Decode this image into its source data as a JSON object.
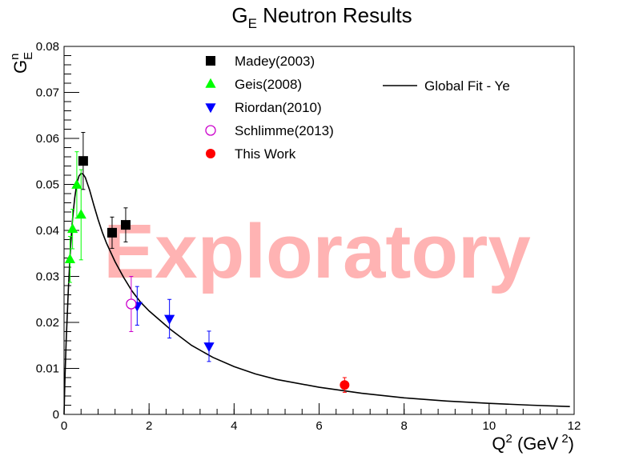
{
  "chart_data": {
    "type": "scatter",
    "title": "G",
    "title_sub": "E",
    "title_rest": " Neutron Results",
    "xlabel": "Q",
    "xlabel_sup": "2",
    "xlabel_rest": " (GeV",
    "xlabel_sup2": "2",
    "xlabel_close": ")",
    "ylabel": "G",
    "ylabel_sup": "n",
    "ylabel_sub": "E",
    "xlim": [
      0,
      12
    ],
    "ylim": [
      0,
      0.08
    ],
    "xticks": [
      0,
      2,
      4,
      6,
      8,
      10,
      12
    ],
    "xtick_labels": [
      "0",
      "2",
      "4",
      "6",
      "8",
      "10",
      "12"
    ],
    "yticks": [
      0,
      0.01,
      0.02,
      0.03,
      0.04,
      0.05,
      0.06,
      0.07,
      0.08
    ],
    "ytick_labels": [
      "0",
      "0.01",
      "0.02",
      "0.03",
      "0.04",
      "0.05",
      "0.06",
      "0.07",
      "0.08"
    ],
    "grid": false,
    "legend_placement": "top-center",
    "watermark": "Exploratory",
    "series": [
      {
        "name": "Madey(2003)",
        "marker": "square",
        "color": "#000000",
        "points": [
          {
            "x": 0.45,
            "y": 0.0551,
            "err": 0.0062
          },
          {
            "x": 1.13,
            "y": 0.0395,
            "err": 0.0034
          },
          {
            "x": 1.45,
            "y": 0.0412,
            "err": 0.0037
          }
        ]
      },
      {
        "name": "Geis(2008)",
        "marker": "triangle-up",
        "color": "#00ff00",
        "points": [
          {
            "x": 0.14,
            "y": 0.0337,
            "err": 0.005
          },
          {
            "x": 0.2,
            "y": 0.0403,
            "err": 0.0043
          },
          {
            "x": 0.3,
            "y": 0.0499,
            "err": 0.0072
          },
          {
            "x": 0.4,
            "y": 0.0434,
            "err": 0.0098
          }
        ]
      },
      {
        "name": "Riordan(2010)",
        "marker": "triangle-down",
        "color": "#0000ff",
        "points": [
          {
            "x": 1.72,
            "y": 0.0236,
            "err": 0.0042
          },
          {
            "x": 2.48,
            "y": 0.0208,
            "err": 0.0042
          },
          {
            "x": 3.41,
            "y": 0.0148,
            "err": 0.0033
          }
        ]
      },
      {
        "name": "Schlimme(2013)",
        "marker": "open-circle",
        "color": "#cc00cc",
        "points": [
          {
            "x": 1.58,
            "y": 0.024,
            "err": 0.006
          }
        ]
      },
      {
        "name": "This Work",
        "marker": "circle",
        "color": "#ff0000",
        "points": [
          {
            "x": 6.6,
            "y": 0.0064,
            "err": 0.0016
          }
        ]
      }
    ],
    "fit": {
      "name": "Global Fit - Ye",
      "color": "#000000",
      "x": [
        0,
        0.02,
        0.05,
        0.1,
        0.15,
        0.2,
        0.25,
        0.3,
        0.35,
        0.4,
        0.45,
        0.5,
        0.6,
        0.7,
        0.8,
        0.9,
        1.0,
        1.2,
        1.4,
        1.6,
        1.8,
        2.0,
        2.5,
        3.0,
        3.5,
        4.0,
        4.5,
        5.0,
        6.0,
        7.0,
        8.0,
        9.0,
        10.0,
        11.0,
        11.9
      ],
      "y": [
        0,
        0.0075,
        0.016,
        0.027,
        0.036,
        0.0425,
        0.047,
        0.0502,
        0.0518,
        0.0524,
        0.0522,
        0.0515,
        0.0488,
        0.0455,
        0.0424,
        0.0396,
        0.0372,
        0.0332,
        0.0298,
        0.0268,
        0.0244,
        0.0225,
        0.0185,
        0.015,
        0.0124,
        0.0104,
        0.0088,
        0.0076,
        0.0059,
        0.0046,
        0.0036,
        0.0029,
        0.0024,
        0.002,
        0.0017
      ]
    }
  }
}
